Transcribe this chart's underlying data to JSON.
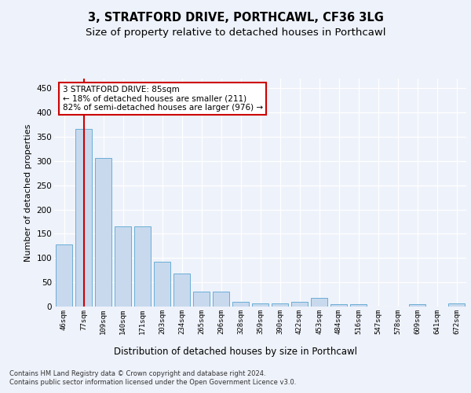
{
  "title_line1": "3, STRATFORD DRIVE, PORTHCAWL, CF36 3LG",
  "title_line2": "Size of property relative to detached houses in Porthcawl",
  "xlabel": "Distribution of detached houses by size in Porthcawl",
  "ylabel": "Number of detached properties",
  "bar_color": "#c8d9ee",
  "bar_edge_color": "#6aaed6",
  "annotation_text": "3 STRATFORD DRIVE: 85sqm\n← 18% of detached houses are smaller (211)\n82% of semi-detached houses are larger (976) →",
  "annotation_box_color": "#ffffff",
  "annotation_border_color": "#cc0000",
  "footer_text": "Contains HM Land Registry data © Crown copyright and database right 2024.\nContains public sector information licensed under the Open Government Licence v3.0.",
  "categories": [
    "46sqm",
    "77sqm",
    "109sqm",
    "140sqm",
    "171sqm",
    "203sqm",
    "234sqm",
    "265sqm",
    "296sqm",
    "328sqm",
    "359sqm",
    "390sqm",
    "422sqm",
    "453sqm",
    "484sqm",
    "516sqm",
    "547sqm",
    "578sqm",
    "609sqm",
    "641sqm",
    "672sqm"
  ],
  "values": [
    128,
    367,
    307,
    165,
    165,
    93,
    68,
    30,
    30,
    10,
    7,
    7,
    10,
    18,
    5,
    5,
    0,
    0,
    5,
    0,
    7
  ],
  "ylim": [
    0,
    470
  ],
  "yticks": [
    0,
    50,
    100,
    150,
    200,
    250,
    300,
    350,
    400,
    450
  ],
  "background_color": "#eef2fa",
  "grid_color": "#ffffff",
  "title_fontsize": 10.5,
  "subtitle_fontsize": 9.5
}
